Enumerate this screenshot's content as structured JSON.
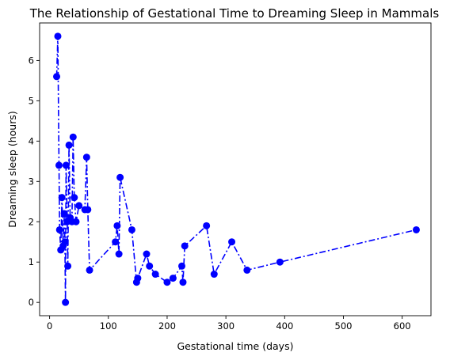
{
  "chart_data": {
    "type": "line",
    "title": "The Relationship of Gestational Time to Dreaming Sleep in Mammals",
    "xlabel": "Gestational time (days)",
    "ylabel": "Dreaming sleep (hours)",
    "xlim": [
      -17,
      649
    ],
    "ylim": [
      -0.33,
      6.93
    ],
    "xticks": [
      0,
      100,
      200,
      300,
      400,
      500,
      600
    ],
    "yticks": [
      0,
      1,
      2,
      3,
      4,
      5,
      6
    ],
    "grid": false,
    "line_style": "dash-dot",
    "marker": "circle",
    "color": "#0000ff",
    "series": [
      {
        "x": [
          12,
          14,
          16,
          17,
          19,
          21,
          23,
          25,
          26,
          27,
          28,
          30,
          31,
          33,
          35,
          38,
          40,
          42,
          45,
          50,
          60,
          63,
          65,
          68,
          112,
          115,
          118,
          120,
          140,
          148,
          150,
          165,
          170,
          180,
          200,
          210,
          225,
          227,
          230,
          267,
          280,
          310,
          336,
          392,
          624
        ],
        "y": [
          5.6,
          6.6,
          3.4,
          1.8,
          1.3,
          2.6,
          1.4,
          2.2,
          1.5,
          0.0,
          3.4,
          2.0,
          0.9,
          3.9,
          2.1,
          2.0,
          4.1,
          2.6,
          2.0,
          2.4,
          2.3,
          3.6,
          2.3,
          0.8,
          1.5,
          1.9,
          1.2,
          3.1,
          1.8,
          0.5,
          0.6,
          1.2,
          0.9,
          0.7,
          0.5,
          0.6,
          0.9,
          0.5,
          1.4,
          1.9,
          0.7,
          1.5,
          0.8,
          1.0,
          1.8
        ]
      }
    ]
  }
}
